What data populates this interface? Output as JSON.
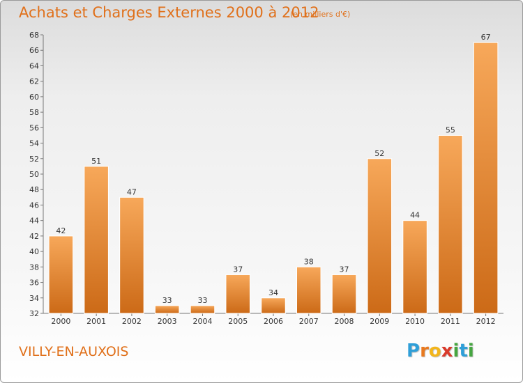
{
  "header": {
    "title": "Achats et Charges Externes 2000 à 2012",
    "subtitle": "(en milliers d'€)"
  },
  "footer": {
    "commune": "VILLY-EN-AUXOIS",
    "logo_letters": [
      "P",
      "r",
      "o",
      "x",
      "i",
      "t",
      "i"
    ],
    "logo_colors": [
      "#2f9fd8",
      "#e8791f",
      "#f2b51c",
      "#d93a2b",
      "#46a641",
      "#2f9fd8",
      "#46a641"
    ]
  },
  "colors": {
    "accent": "#e0701a",
    "bar_top": "#f7a85a",
    "bar_bottom": "#cc6a17"
  },
  "chart_data": {
    "type": "bar",
    "title": "Achats et Charges Externes 2000 à 2012",
    "subtitle": "(en milliers d'€)",
    "categories": [
      "2000",
      "2001",
      "2002",
      "2003",
      "2004",
      "2005",
      "2006",
      "2007",
      "2008",
      "2009",
      "2010",
      "2011",
      "2012"
    ],
    "values": [
      42,
      51,
      47,
      33,
      33,
      37,
      34,
      38,
      37,
      52,
      44,
      55,
      67
    ],
    "ylim": [
      32,
      68
    ],
    "yticks": [
      32,
      34,
      36,
      38,
      40,
      42,
      44,
      46,
      48,
      50,
      52,
      54,
      56,
      58,
      60,
      62,
      64,
      66,
      68
    ],
    "grid": false,
    "legend": "none"
  }
}
